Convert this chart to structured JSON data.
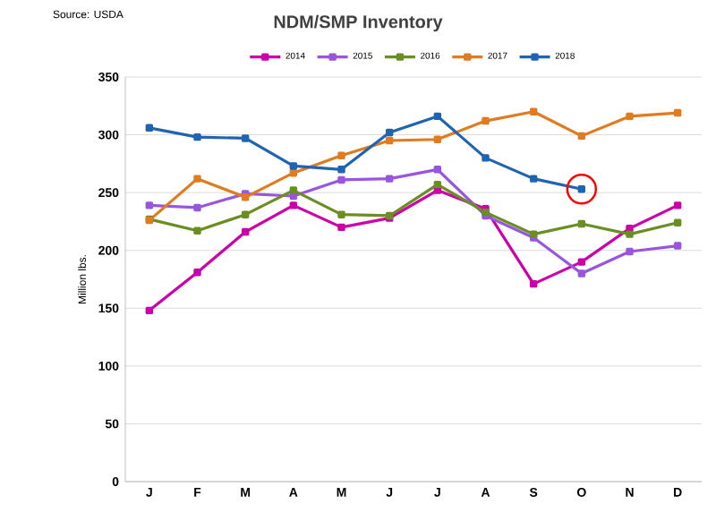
{
  "chart_data": {
    "type": "line",
    "title": "NDM/SMP Inventory",
    "ylabel": "Million lbs.",
    "annotations": [
      "Source: USDA"
    ],
    "categories": [
      "J",
      "F",
      "M",
      "A",
      "M",
      "J",
      "J",
      "A",
      "S",
      "O",
      "N",
      "D"
    ],
    "series": [
      {
        "name": "2014",
        "color": "#cc00aa",
        "values": [
          148,
          181,
          216,
          239,
          220,
          228,
          252,
          236,
          171,
          190,
          219,
          239
        ]
      },
      {
        "name": "2015",
        "color": "#9955dd",
        "values": [
          239,
          237,
          249,
          247,
          261,
          262,
          270,
          230,
          211,
          180,
          199,
          204
        ]
      },
      {
        "name": "2016",
        "color": "#6b8e23",
        "values": [
          227,
          217,
          231,
          252,
          231,
          230,
          257,
          233,
          214,
          223,
          214,
          224
        ]
      },
      {
        "name": "2017",
        "color": "#e07b20",
        "values": [
          226,
          262,
          246,
          267,
          282,
          295,
          296,
          312,
          320,
          299,
          316,
          319
        ]
      },
      {
        "name": "2018",
        "color": "#1f64b0",
        "values": [
          306,
          298,
          297,
          273,
          270,
          302,
          316,
          280,
          262,
          253,
          null,
          null
        ]
      }
    ],
    "ylim": [
      0,
      350
    ],
    "yticks": [
      0,
      50,
      100,
      150,
      200,
      250,
      300,
      350
    ],
    "grid": "y",
    "legend": "top",
    "marker": "square",
    "line_style": "solid"
  }
}
